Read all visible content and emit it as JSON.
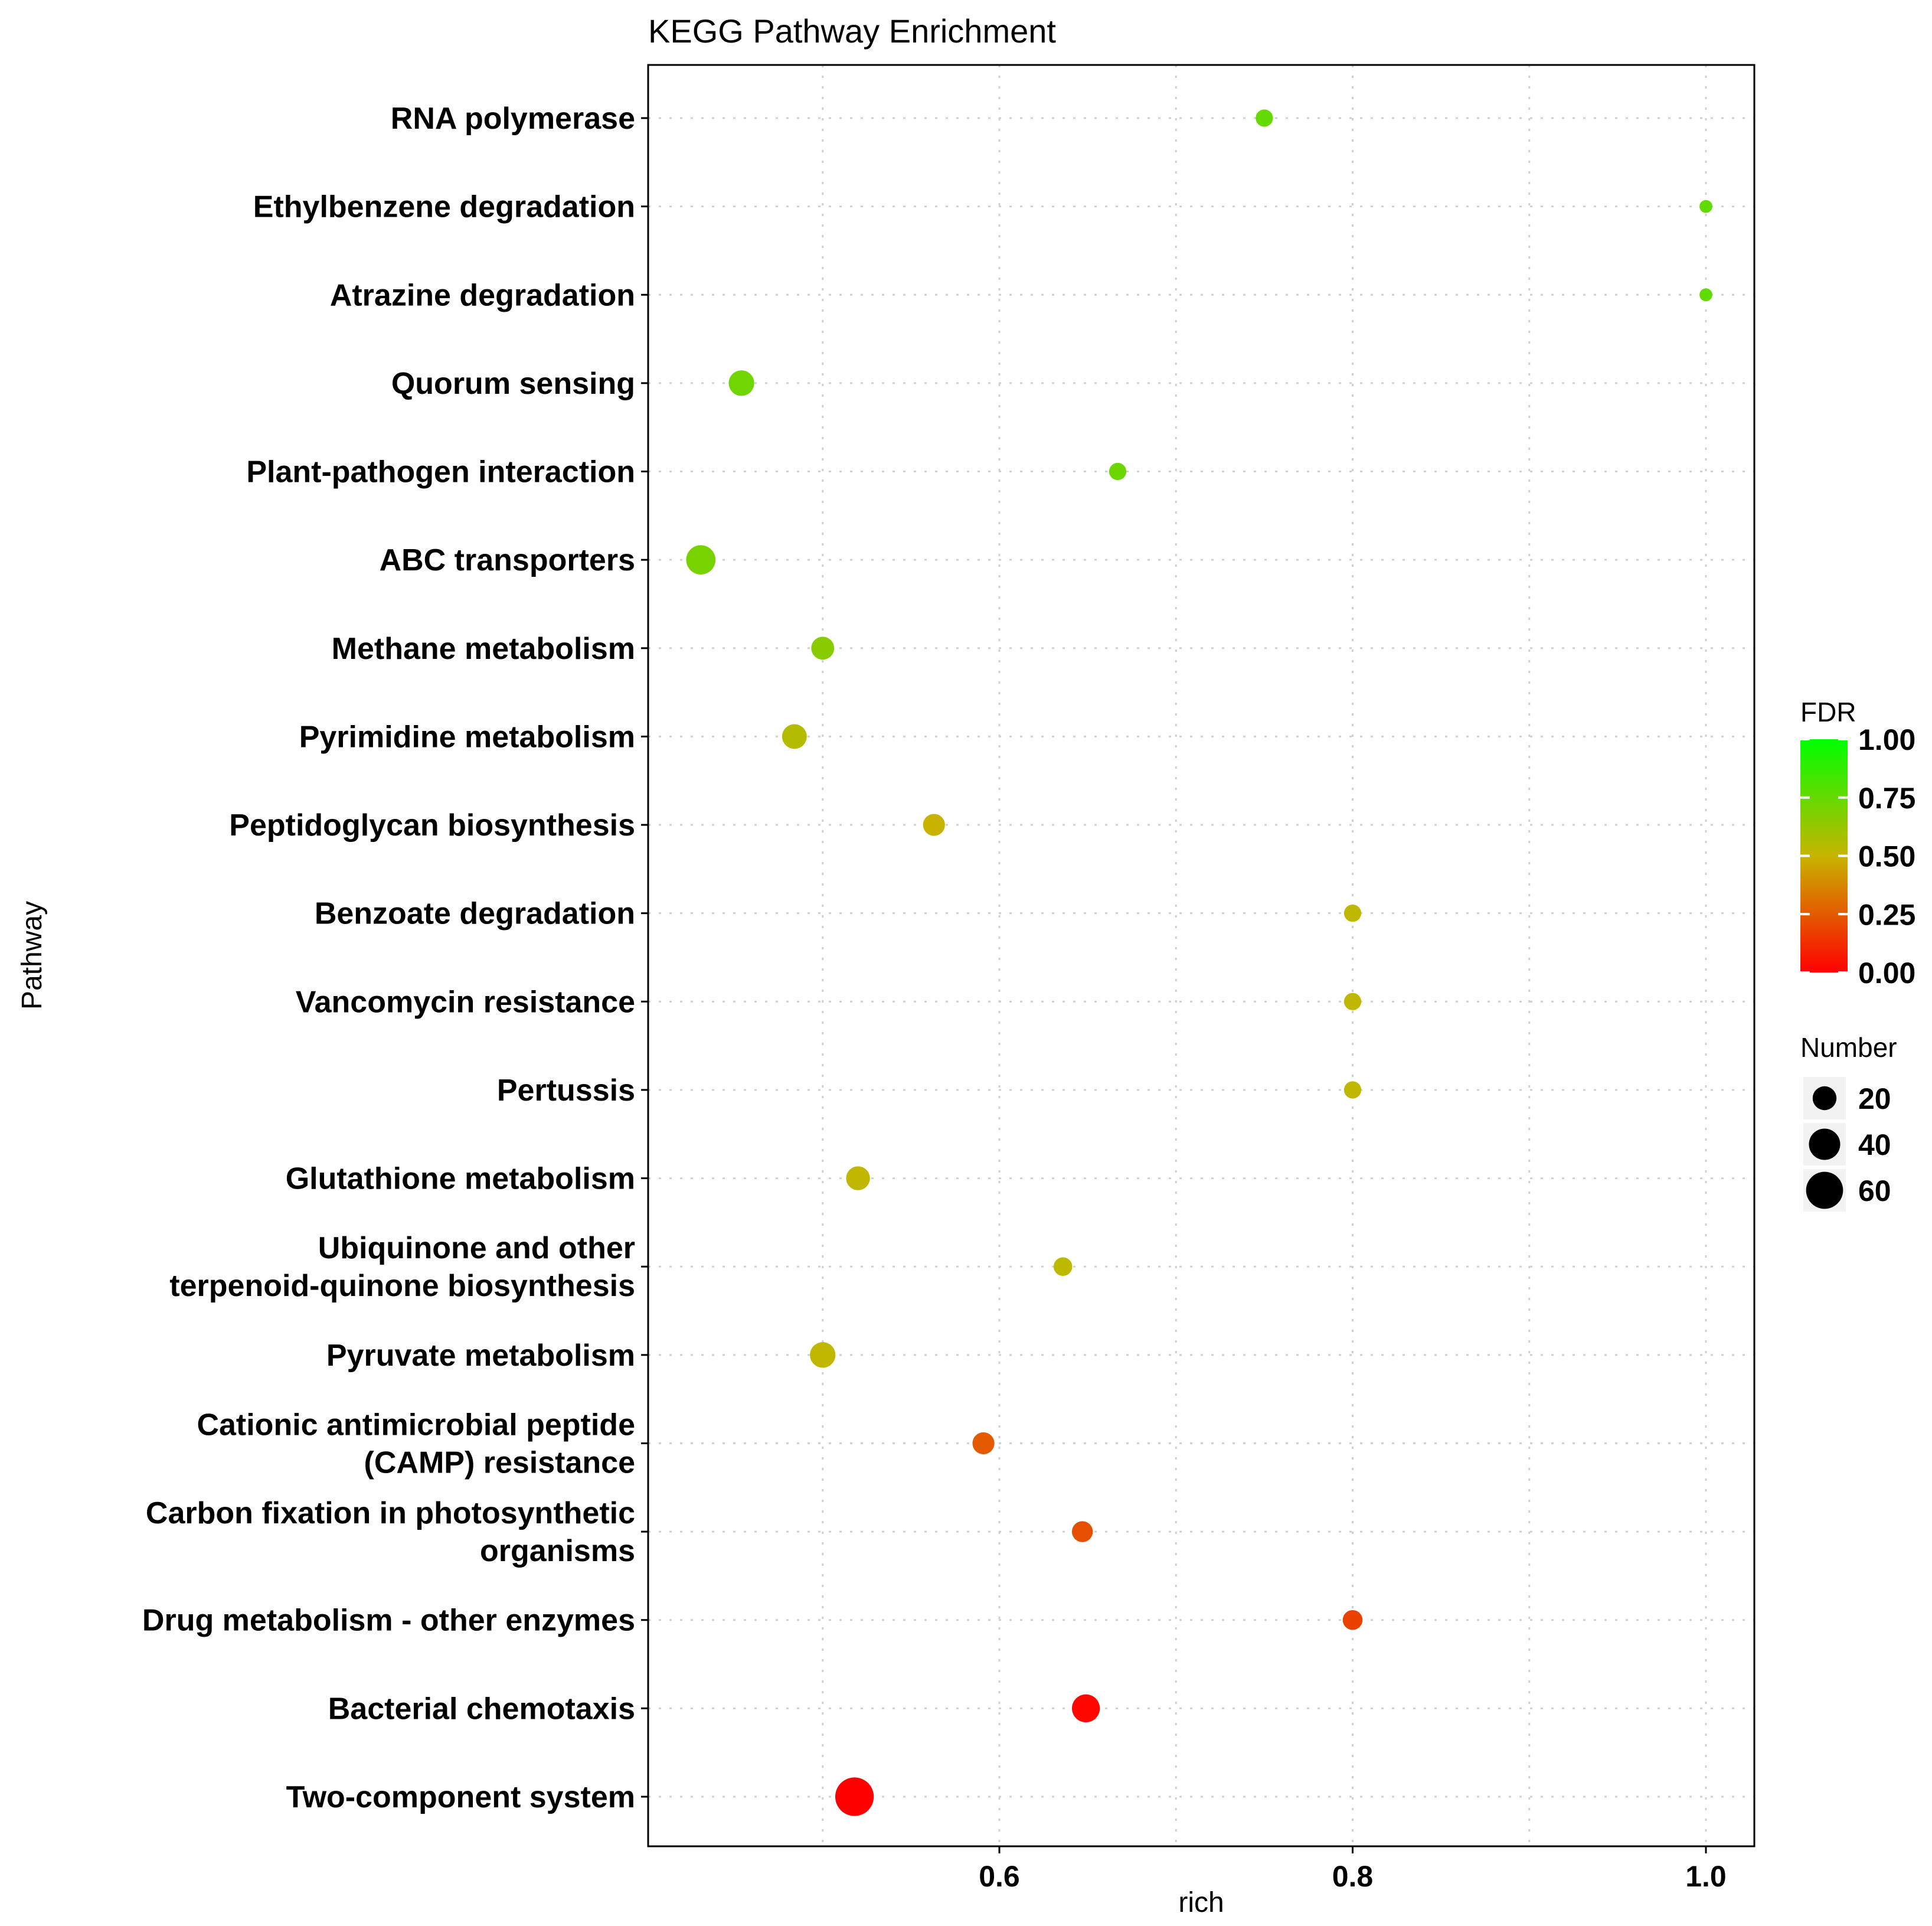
{
  "chart_data": {
    "type": "scatter",
    "title": "KEGG Pathway Enrichment",
    "xlabel": "rich",
    "ylabel": "Pathway",
    "xlim": [
      0.4,
      1.0
    ],
    "xticks": [
      "0.6",
      "0.8",
      "1.0"
    ],
    "grid": true,
    "points": [
      {
        "pathway": "RNA polymerase",
        "rich": 0.75,
        "fdr": 0.75,
        "number": 8
      },
      {
        "pathway": "Ethylbenzene degradation",
        "rich": 1.0,
        "fdr": 0.76,
        "number": 3
      },
      {
        "pathway": "Atrazine degradation",
        "rich": 1.0,
        "fdr": 0.76,
        "number": 3
      },
      {
        "pathway": "Quorum sensing",
        "rich": 0.454,
        "fdr": 0.72,
        "number": 24
      },
      {
        "pathway": "Plant-pathogen interaction",
        "rich": 0.667,
        "fdr": 0.73,
        "number": 8
      },
      {
        "pathway": "ABC transporters",
        "rich": 0.431,
        "fdr": 0.7,
        "number": 34
      },
      {
        "pathway": "Methane metabolism",
        "rich": 0.5,
        "fdr": 0.66,
        "number": 18
      },
      {
        "pathway": "Pyrimidine metabolism",
        "rich": 0.484,
        "fdr": 0.55,
        "number": 22
      },
      {
        "pathway": "Peptidoglycan biosynthesis",
        "rich": 0.563,
        "fdr": 0.5,
        "number": 16
      },
      {
        "pathway": "Benzoate degradation",
        "rich": 0.8,
        "fdr": 0.52,
        "number": 8
      },
      {
        "pathway": "Vancomycin resistance",
        "rich": 0.8,
        "fdr": 0.52,
        "number": 8
      },
      {
        "pathway": "Pertussis",
        "rich": 0.8,
        "fdr": 0.52,
        "number": 8
      },
      {
        "pathway": "Glutathione metabolism",
        "rich": 0.52,
        "fdr": 0.52,
        "number": 20
      },
      {
        "pathway": "Ubiquinone and other\nterpenoid-quinone biosynthesis",
        "rich": 0.636,
        "fdr": 0.53,
        "number": 10
      },
      {
        "pathway": "Pyruvate metabolism",
        "rich": 0.5,
        "fdr": 0.52,
        "number": 24
      },
      {
        "pathway": "Cationic antimicrobial peptide\n(CAMP) resistance",
        "rich": 0.591,
        "fdr": 0.25,
        "number": 16
      },
      {
        "pathway": "Carbon fixation in photosynthetic\norganisms",
        "rich": 0.647,
        "fdr": 0.22,
        "number": 14
      },
      {
        "pathway": "Drug metabolism - other enzymes",
        "rich": 0.8,
        "fdr": 0.18,
        "number": 12
      },
      {
        "pathway": "Bacterial chemotaxis",
        "rich": 0.649,
        "fdr": 0.02,
        "number": 30
      },
      {
        "pathway": "Two-component system",
        "rich": 0.518,
        "fdr": 0.0,
        "number": 66
      }
    ],
    "legend_color": {
      "title": "FDR",
      "ticks": [
        "1.00",
        "0.75",
        "0.50",
        "0.25",
        "0.00"
      ],
      "low_color": "#ff0000",
      "mid_color": "#c8b400",
      "high_color": "#00ff00",
      "placement": "right"
    },
    "legend_size": {
      "title": "Number",
      "values": [
        "20",
        "40",
        "60"
      ],
      "placement": "right"
    }
  }
}
